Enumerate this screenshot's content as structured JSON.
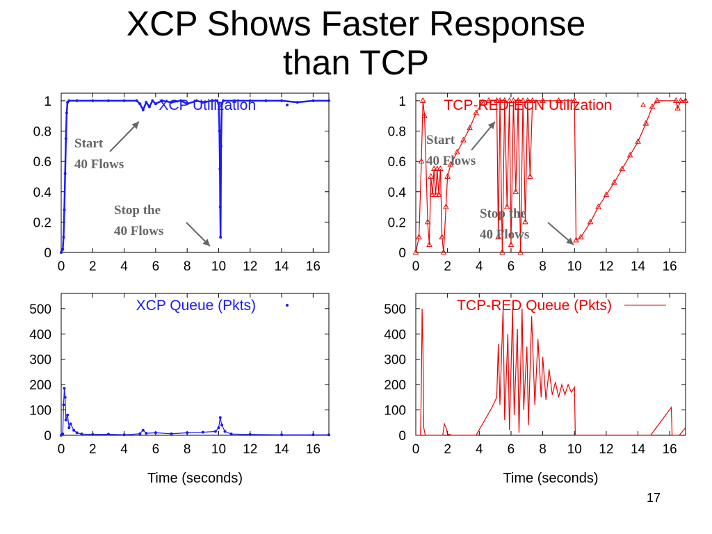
{
  "slide": {
    "title_line1": "XCP Shows Faster Response",
    "title_line2": "than TCP",
    "slide_number": "17"
  },
  "colors": {
    "xcp": "#1a1aff",
    "tcp": "#ee0000",
    "annotation": "#666666",
    "axis": "#000000"
  },
  "chart_data": [
    {
      "id": "xcp-util",
      "type": "scatter",
      "legend": "XCP Utilization",
      "xlabel": "",
      "xlim": [
        0,
        17
      ],
      "ylim": [
        0,
        1.05
      ],
      "xticks": [
        0,
        2,
        4,
        6,
        8,
        10,
        12,
        14,
        16
      ],
      "yticks": [
        0,
        0.2,
        0.4,
        0.6,
        0.8,
        1
      ],
      "ytick_labels": [
        "0",
        "0.2",
        "0.4",
        "0.6",
        "0.8",
        "1"
      ],
      "annotations": [
        {
          "line1": "Start",
          "line2": "40 Flows"
        },
        {
          "line1": "Stop the",
          "line2": "40 Flows"
        }
      ],
      "series": [
        {
          "values": [
            [
              0.0,
              0.0
            ],
            [
              0.1,
              0.02
            ],
            [
              0.15,
              0.1
            ],
            [
              0.2,
              0.28
            ],
            [
              0.25,
              0.52
            ],
            [
              0.3,
              0.75
            ],
            [
              0.35,
              0.92
            ],
            [
              0.4,
              0.99
            ],
            [
              0.5,
              1.0
            ],
            [
              1.0,
              1.0
            ],
            [
              2.0,
              1.0
            ],
            [
              3.0,
              1.0
            ],
            [
              4.0,
              1.0
            ],
            [
              4.8,
              1.0
            ],
            [
              5.0,
              0.98
            ],
            [
              5.2,
              0.94
            ],
            [
              5.4,
              0.99
            ],
            [
              5.6,
              0.96
            ],
            [
              5.8,
              1.0
            ],
            [
              6.0,
              0.98
            ],
            [
              6.4,
              1.0
            ],
            [
              7.0,
              0.99
            ],
            [
              7.6,
              1.0
            ],
            [
              8.0,
              0.98
            ],
            [
              8.6,
              1.0
            ],
            [
              9.0,
              0.99
            ],
            [
              9.6,
              1.0
            ],
            [
              9.9,
              1.0
            ],
            [
              10.0,
              0.98
            ],
            [
              10.05,
              0.8
            ],
            [
              10.08,
              0.55
            ],
            [
              10.1,
              0.3
            ],
            [
              10.12,
              0.1
            ],
            [
              10.15,
              0.7
            ],
            [
              10.2,
              0.98
            ],
            [
              10.3,
              1.0
            ],
            [
              11.0,
              1.0
            ],
            [
              12.0,
              1.0
            ],
            [
              13.0,
              1.0
            ],
            [
              14.0,
              1.0
            ],
            [
              15.0,
              0.99
            ],
            [
              16.0,
              1.0
            ],
            [
              17.0,
              1.0
            ]
          ]
        }
      ]
    },
    {
      "id": "tcp-util",
      "type": "line",
      "legend": "TCP-RED-ECN Utilization",
      "xlabel": "",
      "xlim": [
        0,
        17
      ],
      "ylim": [
        0,
        1.05
      ],
      "xticks": [
        0,
        2,
        4,
        6,
        8,
        10,
        12,
        14,
        16
      ],
      "yticks": [
        0,
        0.2,
        0.4,
        0.6,
        0.8,
        1
      ],
      "ytick_labels": [
        "0",
        "0.2",
        "0.4",
        "0.6",
        "0.8",
        "1"
      ],
      "annotations": [
        {
          "line1": "Start",
          "line2": "40 Flows"
        },
        {
          "line1": "Stop the",
          "line2": "40 Flows"
        }
      ],
      "series": [
        {
          "values": [
            [
              0.0,
              0.0
            ],
            [
              0.2,
              0.1
            ],
            [
              0.35,
              0.6
            ],
            [
              0.45,
              1.0
            ],
            [
              0.55,
              0.9
            ],
            [
              0.75,
              0.2
            ],
            [
              0.85,
              0.05
            ],
            [
              0.95,
              0.5
            ],
            [
              1.05,
              0.38
            ],
            [
              1.15,
              0.55
            ],
            [
              1.25,
              0.38
            ],
            [
              1.35,
              0.55
            ],
            [
              1.45,
              0.38
            ],
            [
              1.55,
              0.55
            ],
            [
              1.65,
              0.1
            ],
            [
              1.75,
              0.0
            ],
            [
              1.9,
              0.3
            ],
            [
              2.0,
              0.5
            ],
            [
              2.2,
              0.58
            ],
            [
              2.6,
              0.66
            ],
            [
              3.0,
              0.74
            ],
            [
              3.4,
              0.82
            ],
            [
              3.8,
              0.92
            ],
            [
              4.2,
              0.99
            ],
            [
              4.6,
              1.0
            ],
            [
              5.1,
              1.0
            ],
            [
              5.2,
              0.1
            ],
            [
              5.3,
              1.0
            ],
            [
              5.45,
              0.0
            ],
            [
              5.6,
              1.0
            ],
            [
              5.75,
              0.3
            ],
            [
              5.9,
              1.0
            ],
            [
              6.0,
              0.05
            ],
            [
              6.15,
              1.0
            ],
            [
              6.3,
              0.4
            ],
            [
              6.45,
              1.0
            ],
            [
              6.6,
              0.0
            ],
            [
              6.75,
              1.0
            ],
            [
              6.9,
              0.2
            ],
            [
              7.05,
              1.0
            ],
            [
              7.2,
              0.5
            ],
            [
              7.35,
              1.0
            ],
            [
              8.0,
              1.0
            ],
            [
              9.0,
              1.0
            ],
            [
              10.0,
              1.0
            ],
            [
              10.1,
              0.08
            ],
            [
              10.4,
              0.1
            ],
            [
              11.0,
              0.2
            ],
            [
              11.5,
              0.3
            ],
            [
              12.0,
              0.38
            ],
            [
              12.5,
              0.46
            ],
            [
              13.0,
              0.55
            ],
            [
              13.5,
              0.64
            ],
            [
              14.0,
              0.73
            ],
            [
              14.5,
              0.85
            ],
            [
              14.9,
              0.96
            ],
            [
              15.2,
              1.0
            ],
            [
              16.4,
              1.0
            ],
            [
              16.5,
              0.95
            ],
            [
              16.7,
              1.0
            ],
            [
              17.0,
              1.0
            ]
          ]
        }
      ]
    },
    {
      "id": "xcp-queue",
      "type": "line",
      "legend": "XCP Queue (Pkts)",
      "xlabel": "Time (seconds)",
      "xlim": [
        0,
        17
      ],
      "ylim": [
        0,
        560
      ],
      "xticks": [
        0,
        2,
        4,
        6,
        8,
        10,
        12,
        14,
        16
      ],
      "yticks": [
        0,
        100,
        200,
        300,
        400,
        500
      ],
      "ytick_labels": [
        "0",
        "100",
        "200",
        "300",
        "400",
        "500"
      ],
      "series": [
        {
          "values": [
            [
              0.0,
              0
            ],
            [
              0.1,
              5
            ],
            [
              0.15,
              120
            ],
            [
              0.2,
              185
            ],
            [
              0.25,
              150
            ],
            [
              0.3,
              60
            ],
            [
              0.4,
              80
            ],
            [
              0.5,
              30
            ],
            [
              0.6,
              45
            ],
            [
              0.8,
              20
            ],
            [
              1.0,
              10
            ],
            [
              1.3,
              5
            ],
            [
              2.0,
              3
            ],
            [
              3.0,
              4
            ],
            [
              4.0,
              2
            ],
            [
              5.0,
              6
            ],
            [
              5.2,
              20
            ],
            [
              5.4,
              8
            ],
            [
              6.0,
              10
            ],
            [
              7.0,
              6
            ],
            [
              8.0,
              10
            ],
            [
              9.0,
              12
            ],
            [
              9.8,
              15
            ],
            [
              10.0,
              30
            ],
            [
              10.1,
              70
            ],
            [
              10.2,
              40
            ],
            [
              10.4,
              15
            ],
            [
              10.8,
              5
            ],
            [
              12.0,
              3
            ],
            [
              14.0,
              2
            ],
            [
              16.0,
              2
            ],
            [
              17.0,
              2
            ]
          ]
        }
      ]
    },
    {
      "id": "tcp-queue",
      "type": "line",
      "legend": "TCP-RED Queue (Pkts)",
      "xlabel": "Time (seconds)",
      "xlim": [
        0,
        17
      ],
      "ylim": [
        0,
        560
      ],
      "xticks": [
        0,
        2,
        4,
        6,
        8,
        10,
        12,
        14,
        16
      ],
      "yticks": [
        0,
        100,
        200,
        300,
        400,
        500
      ],
      "ytick_labels": [
        "0",
        "100",
        "200",
        "300",
        "400",
        "500"
      ],
      "series": [
        {
          "values": [
            [
              0.0,
              0
            ],
            [
              0.3,
              0
            ],
            [
              0.35,
              200
            ],
            [
              0.4,
              500
            ],
            [
              0.45,
              330
            ],
            [
              0.5,
              30
            ],
            [
              0.6,
              0
            ],
            [
              1.7,
              0
            ],
            [
              1.8,
              45
            ],
            [
              1.9,
              30
            ],
            [
              2.0,
              5
            ],
            [
              2.3,
              0
            ],
            [
              3.8,
              0
            ],
            [
              4.8,
              110
            ],
            [
              5.1,
              150
            ],
            [
              5.2,
              360
            ],
            [
              5.3,
              120
            ],
            [
              5.5,
              500
            ],
            [
              5.6,
              60
            ],
            [
              5.8,
              400
            ],
            [
              5.9,
              20
            ],
            [
              6.1,
              500
            ],
            [
              6.2,
              80
            ],
            [
              6.4,
              420
            ],
            [
              6.5,
              10
            ],
            [
              6.7,
              500
            ],
            [
              6.8,
              100
            ],
            [
              7.0,
              350
            ],
            [
              7.1,
              40
            ],
            [
              7.3,
              470
            ],
            [
              7.5,
              120
            ],
            [
              7.7,
              380
            ],
            [
              7.9,
              150
            ],
            [
              8.0,
              310
            ],
            [
              8.2,
              140
            ],
            [
              8.4,
              260
            ],
            [
              8.6,
              160
            ],
            [
              8.8,
              210
            ],
            [
              9.0,
              150
            ],
            [
              9.2,
              200
            ],
            [
              9.4,
              160
            ],
            [
              9.6,
              200
            ],
            [
              9.8,
              170
            ],
            [
              10.0,
              190
            ],
            [
              10.05,
              0
            ],
            [
              12.0,
              0
            ],
            [
              14.8,
              0
            ],
            [
              16.1,
              110
            ],
            [
              16.15,
              0
            ],
            [
              16.6,
              0
            ],
            [
              17.0,
              30
            ]
          ]
        }
      ]
    }
  ]
}
